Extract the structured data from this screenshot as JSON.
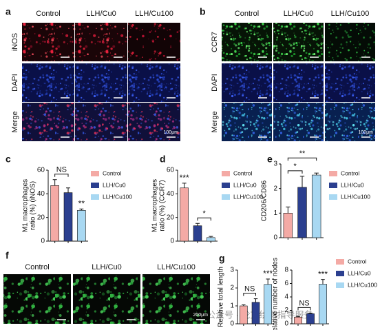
{
  "panels": {
    "a": {
      "label": "a",
      "columns": [
        "Control",
        "LLH/Cu0",
        "LLH/Cu100"
      ],
      "rows": [
        "iNOS",
        "DAPI",
        "Merge"
      ],
      "scale": "100μm"
    },
    "b": {
      "label": "b",
      "columns": [
        "Control",
        "LLH/Cu0",
        "LLH/Cu100"
      ],
      "rows": [
        "CCR7",
        "DAPI",
        "Merge"
      ],
      "scale": "100μm"
    },
    "f": {
      "label": "f",
      "columns": [
        "Control",
        "LLH/Cu0",
        "LLH/Cu100"
      ],
      "scale": "200μm"
    }
  },
  "watermark": "公众号 · 论文绘图指导服务",
  "chart_data": [
    {
      "type": "bar",
      "label": "c",
      "ylabel": [
        "M1 macrophages",
        "ratio (%) (iNOS)"
      ],
      "categories": [
        null
      ],
      "ylim": [
        0,
        60
      ],
      "yticks": [
        0,
        20,
        40,
        60
      ],
      "legend": true,
      "series": [
        {
          "name": "Control",
          "color": "#f4aaa5",
          "values": [
            47
          ],
          "errors": [
            5
          ]
        },
        {
          "name": "LLH/Cu0",
          "color": "#2b3f8f",
          "values": [
            41
          ],
          "errors": [
            4
          ]
        },
        {
          "name": "LLH/Cu100",
          "color": "#a8d8f2",
          "values": [
            26
          ],
          "errors": [
            1.2
          ]
        }
      ],
      "annotations": [
        {
          "text": "NS",
          "pair": [
            0,
            1
          ]
        },
        {
          "text": "**",
          "over": 2
        }
      ]
    },
    {
      "type": "bar",
      "label": "d",
      "ylabel": [
        "M1 macrophages",
        "ratio (%) (CCR7)"
      ],
      "categories": [
        null
      ],
      "ylim": [
        0,
        60
      ],
      "yticks": [
        0,
        20,
        40,
        60
      ],
      "legend": true,
      "series": [
        {
          "name": "Control",
          "color": "#f4aaa5",
          "values": [
            45
          ],
          "errors": [
            4
          ]
        },
        {
          "name": "LLH/Cu0",
          "color": "#2b3f8f",
          "values": [
            13
          ],
          "errors": [
            2
          ]
        },
        {
          "name": "LLH/Cu100",
          "color": "#a8d8f2",
          "values": [
            3
          ],
          "errors": [
            1
          ]
        }
      ],
      "annotations": [
        {
          "text": "***",
          "over": 0
        },
        {
          "text": "*",
          "pair": [
            1,
            2
          ]
        }
      ]
    },
    {
      "type": "bar",
      "label": "e",
      "ylabel": [
        "CD206/CD86"
      ],
      "categories": [
        null
      ],
      "ylim": [
        0,
        3
      ],
      "yticks": [
        0,
        1,
        2,
        3
      ],
      "legend": true,
      "series": [
        {
          "name": "Control",
          "color": "#f4aaa5",
          "values": [
            1.0
          ],
          "errors": [
            0.25
          ]
        },
        {
          "name": "LLH/Cu0",
          "color": "#2b3f8f",
          "values": [
            2.05
          ],
          "errors": [
            0.45
          ]
        },
        {
          "name": "LLH/Cu100",
          "color": "#a8d8f2",
          "values": [
            2.55
          ],
          "errors": [
            0.08
          ]
        }
      ],
      "annotations": [
        {
          "text": "*",
          "pair": [
            0,
            1
          ]
        },
        {
          "text": "**",
          "pair": [
            0,
            2
          ]
        }
      ]
    },
    {
      "type": "bar",
      "label": "g",
      "ylabel": [
        "Relative total length"
      ],
      "categories": [
        null
      ],
      "ylim": [
        0,
        3
      ],
      "yticks": [
        0,
        1,
        2,
        3
      ],
      "legend": false,
      "series": [
        {
          "name": "Control",
          "color": "#f4aaa5",
          "values": [
            1.0
          ],
          "errors": [
            0.06
          ]
        },
        {
          "name": "LLH/Cu0",
          "color": "#2b3f8f",
          "values": [
            1.2
          ],
          "errors": [
            0.2
          ]
        },
        {
          "name": "LLH/Cu100",
          "color": "#a8d8f2",
          "values": [
            2.2
          ],
          "errors": [
            0.3
          ]
        }
      ],
      "annotations": [
        {
          "text": "NS",
          "pair": [
            0,
            1
          ]
        },
        {
          "text": "***",
          "over": 2
        }
      ]
    },
    {
      "type": "bar",
      "ylabel": [
        "Relative number of nodes"
      ],
      "categories": [
        null
      ],
      "ylim": [
        0,
        8
      ],
      "yticks": [
        0,
        2,
        4,
        6,
        8
      ],
      "legend": true,
      "series": [
        {
          "name": "Control",
          "color": "#f4aaa5",
          "values": [
            1.0
          ],
          "errors": [
            0.1
          ]
        },
        {
          "name": "LLH/Cu0",
          "color": "#2b3f8f",
          "values": [
            1.5
          ],
          "errors": [
            0.1
          ]
        },
        {
          "name": "LLH/Cu100",
          "color": "#a8d8f2",
          "values": [
            5.9
          ],
          "errors": [
            0.7
          ]
        }
      ],
      "annotations": [
        {
          "text": "NS",
          "pair": [
            0,
            1
          ]
        },
        {
          "text": "***",
          "over": 2
        }
      ]
    }
  ]
}
